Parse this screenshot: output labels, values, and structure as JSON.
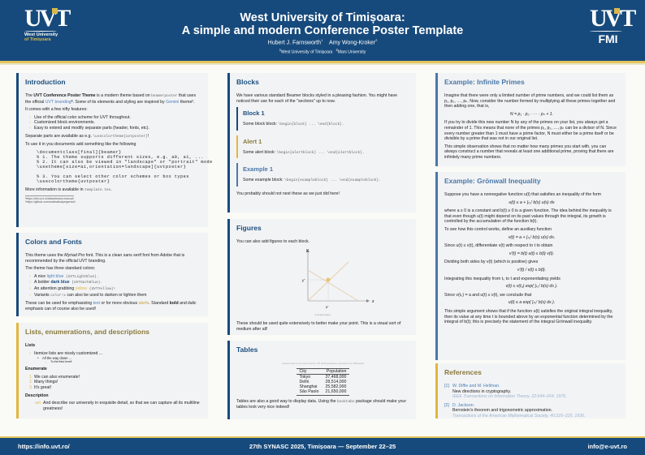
{
  "header": {
    "title_line1": "West University of Timișoara:",
    "title_line2": "A simple and modern Conference Poster Template",
    "author1": "Hubert J. Farnsworth",
    "author1_sup": "1",
    "author2": "Amy Wong-Kroker",
    "author2_sup": "2",
    "affil1": "West University of Timișoara",
    "affil2": "Mars University",
    "logo_left_line1": "West University",
    "logo_left_line2": "of Timișoara",
    "logo_left_mark": "UVT",
    "logo_right_mark": "UVT",
    "logo_right_text": "FMI"
  },
  "colors": {
    "dark_blue": "#174a7c",
    "light_blue": "#4a7fb8",
    "yellow": "#e2b73f"
  },
  "intro": {
    "title": "Introduction",
    "p1_a": "The ",
    "p1_bold": "UVT Conference Poster Theme",
    "p1_b": " is a modern theme based on ",
    "p1_code": "beamerposter",
    "p1_c": " that uses the official ",
    "p1_link1": "UVT branding",
    "p1_d": "ª. Some of its elements and styling are inspired by ",
    "p1_link2": "Gemini",
    "p1_e": " themeᵇ.",
    "p2": "It comes with a few nifty features:",
    "features": [
      "Use of the official color scheme for UVT throughout.",
      "Customized block environments.",
      "Easy to extend and modify separate parts (header, fonts, etc)."
    ],
    "p3_a": "Separate parts are available as e.g. ",
    "p3_code": "\\usecolortheme{uvtposter}",
    "p3_b": "!",
    "p4": "To use it in you documents add something like the following",
    "code": "\\documentclass[final]{beamer}\n% 1. The theme supports different sizes, e.g. a0, a1, ...\n% 2. It can also be viewed in \"landscape\" or \"portrait\" mode\n\\usetheme[size=a1,orientation=landscape]{uvtposter}\n\n% 3. You can select other color schemes or box types\n\\usecolortheme{uvtposter}",
    "p5_a": "More information is available in ",
    "p5_code": "template.tex",
    "p5_b": ".",
    "footnotes": [
      "ªhttps://dev.uvt.ro/ideas/brand-manual/",
      "ᵇhttps://github.com/anishathalye/gemini/"
    ]
  },
  "colorsfonts": {
    "title": "Colors and Fonts",
    "p1_a": "This theme uses the ",
    "p1_i": "Myriad Pro",
    "p1_b": " font. This is a clean sans serif font from Adobe that is recommended by the official UVT branding.",
    "p2": "The theme has three standard colors:",
    "items": [
      {
        "a": "A nice ",
        "c": "light blue",
        "code": " (UVTLightBlue)."
      },
      {
        "a": "A bolder ",
        "c": "dark blue",
        "code": " (UVTDarkBlue)."
      },
      {
        "a": "An attention grabbing ",
        "c": "yellow",
        "code": " (UVTYellow)!"
      },
      {
        "a": "Variants ",
        "c": "",
        "code": "color!x",
        "tail": " can also be used to darken or lighten them"
      }
    ],
    "p3_a": "These can be used for emphasizing ",
    "p3_text": "text",
    "p3_b": " or for more obvious ",
    "p3_alert": "alerts",
    "p3_c": ". Standard ",
    "p3_bold": "bold",
    "p3_d": " and ",
    "p3_italic": "italic",
    "p3_e": " emphasis can of course also be used!"
  },
  "lists": {
    "title": "Lists, enumerations, and descriptions",
    "h1": "Lists",
    "l1": "Itemize lists are nicely customized ...",
    "l2": "All the way down ...",
    "l3": "To the third level!",
    "h2": "Enumerate",
    "enum": [
      "We can also enumerate!",
      "Many things!",
      "It's great!"
    ],
    "h3": "Description",
    "desc_term": "uvt",
    "desc_text": "And describe our university in exquisite detail, so that we can capture all its multiline greatness!"
  },
  "blocks": {
    "title": "Blocks",
    "p1": "We have various standard Beamer blocks styled in a pleasing fashion. You might have noticed their use for each of the \"sections\" up to now.",
    "b1_title": "Block 1",
    "b1_text": "Some block block: ",
    "b1_code": "\\begin{block} ... \\end{block}.",
    "a1_title": "Alert 1",
    "a1_text": "Some alert block: ",
    "a1_code": "\\begin{alertblock} ... \\end{alertblock}.",
    "e1_title": "Example 1",
    "e1_text": "Some example block: ",
    "e1_code": "\\begin{exampleblock} ... \\end{exampleblock}.",
    "p2": "You probably should not nest these as we just did here!"
  },
  "figures": {
    "title": "Figures",
    "p1": "You can also add figures to each block.",
    "axis_x": "x",
    "axis_y": "y",
    "mark_x": "x'",
    "mark_y": "y'",
    "caption": "A simple figure.",
    "p2": "These should be used quite extensively to better make your point. This is a visual sort of medium after all!"
  },
  "tables": {
    "title": "Tables",
    "caption": "Largest cities in the world (source: UN 2018 population estimates from Wikipedia)",
    "headers": [
      "City",
      "Population"
    ],
    "rows": [
      [
        "Tokyo",
        "37,468,000"
      ],
      [
        "Delhi",
        "28,514,000"
      ],
      [
        "Shanghai",
        "25,582,000"
      ],
      [
        "São Paolo",
        "21,650,000"
      ]
    ],
    "p_a": "Tables are also a good way to display data. Using the ",
    "p_code": "booktabs",
    "p_b": " package should make your tables look very nice indeed!"
  },
  "primes": {
    "title": "Example: Infinite Primes",
    "p1": "Imagine that there were only a limited number of prime numbers, and we could list them as p₁, p₂, …, pₙ. Now, consider the number formed by multiplying all these primes together and then adding one, that is,",
    "eq": "N = p₁ · p₂ · ··· · pₙ + 1.",
    "p2": "If you try to divide this new number N by any of the primes on your list, you always get a remainder of 1. This means that none of the primes p₁, p₂, …, pₙ can be a divisor of N. Since every number greater than 1 must have a prime factor, N must either be a prime itself or be divisible by a prime that was not in our original list.",
    "p3": "This simple observation shows that no matter how many primes you start with, you can always construct a number that reveals at least one additional prime, proving that there are infinitely many prime numbers."
  },
  "gronwall": {
    "title": "Example: Grönwall Inequality",
    "p1": "Suppose you have a nonnegative function u(t) that satisfies an inequality of the form",
    "eq1": "u(t) ≤ a + ∫ₜ₀ᵗ b(s) u(s) ds",
    "p2": "where a ≥ 0 is a constant and b(t) ≥ 0 is a given function. The idea behind the inequality is that even though u(t) might depend on its past values through the integral, its growth is controlled by the accumulation of the function b(t).",
    "p3": "To see how this control works, define an auxiliary function",
    "eq2": "v(t) = a + ∫ₜ₀ᵗ b(s) u(s) ds.",
    "p4": "Since u(t) ≤ v(t), differentiate v(t) with respect to t to obtain",
    "eq3": "v′(t) = b(t) u(t) ≤ b(t) v(t).",
    "p5": "Dividing both sides by v(t) (which is positive) gives",
    "eq4": "v′(t) / v(t) ≤ b(t).",
    "p6": "Integrating this inequality from t₀ to t and exponentiating yields",
    "eq5": "v(t) ≤ v(t₀) exp( ∫ₜ₀ᵗ b(s) ds ).",
    "p7": "Since v(t₀) = a and u(t) ≤ v(t), we conclude that",
    "eq6": "u(t) ≤ a exp( ∫ₜ₀ᵗ b(s) ds ).",
    "p8": "This simple argument shows that if the function u(t) satisfies the original integral inequality, then its value at any time t is bounded above by an exponential function determined by the integral of b(t); this is precisely the statement of the integral Grönwall inequality."
  },
  "references": {
    "title": "References",
    "items": [
      {
        "n": "[1]",
        "authors": "W. Diffie and M. Hellman.",
        "title": "New directions in cryptography.",
        "venue": "IEEE Transactions on Information Theory, 22:644–654, 1976."
      },
      {
        "n": "[2]",
        "authors": "D. Jackson.",
        "title": "Bernstein's theorem and trigonometric approximation.",
        "venue": "Transactions of the American Mathematical Society, 40:225–225, 1936."
      }
    ]
  },
  "footer": {
    "left": "https://info.uvt.ro/",
    "center": "27th SYNASC 2025, Timișoara — September 22–25",
    "right": "info@e-uvt.ro"
  }
}
